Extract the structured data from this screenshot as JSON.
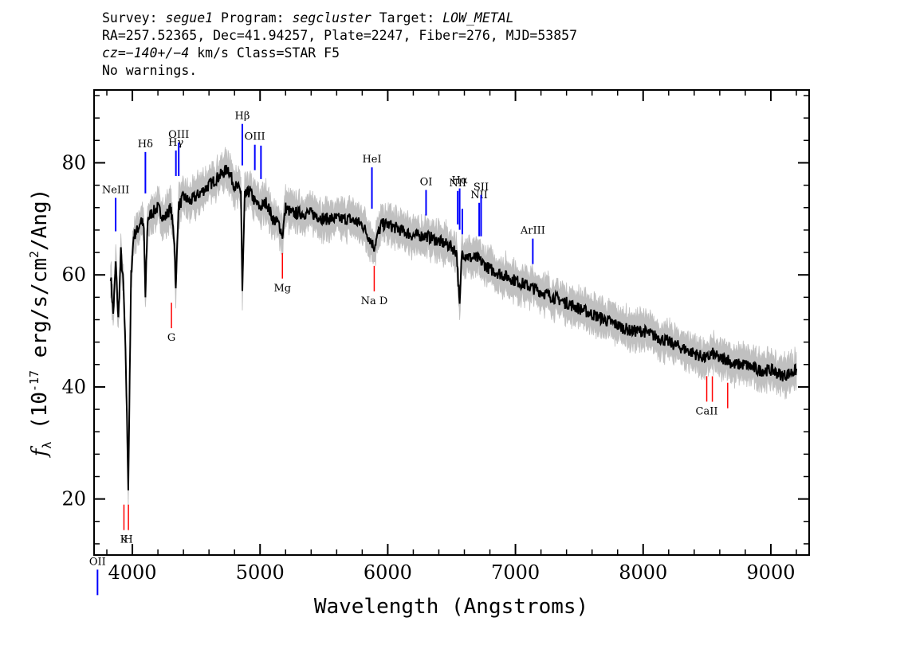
{
  "header": {
    "line1": {
      "survey_label": "Survey: ",
      "survey": "segue1",
      "program_label": " Program: ",
      "program": "segcluster",
      "target_label": " Target: ",
      "target": "LOW_METAL"
    },
    "line2": "RA=257.52365, Dec=41.94257, Plate=2247, Fiber=276, MJD=53857",
    "line3": {
      "cz": "cz=−140+/−4",
      "rest": " km/s Class=STAR F5"
    },
    "line4": "No warnings."
  },
  "chart_data": {
    "type": "line",
    "xlabel": "Wavelength (Angstroms)",
    "ylabel": "f_λ (10^-17 erg/s/cm^2/Ang)",
    "xlim": [
      3700,
      9300
    ],
    "ylim": [
      10,
      93
    ],
    "x_ticks": [
      4000,
      5000,
      6000,
      7000,
      8000,
      9000
    ],
    "y_ticks": [
      20,
      40,
      60,
      80
    ],
    "grid": false,
    "colors": {
      "spectrum": "#000000",
      "error_band": "#c0c0c0",
      "emission_lines": "#0000ff",
      "absorption_lines": "#ff0000"
    },
    "series": [
      {
        "x": [
          3830,
          3850,
          3870,
          3890,
          3910,
          3930,
          3950,
          3968,
          3990,
          4010,
          4040,
          4070,
          4090,
          4102,
          4120,
          4150,
          4200,
          4250,
          4300,
          4330,
          4340,
          4360,
          4400,
          4450,
          4500,
          4550,
          4600,
          4650,
          4700,
          4750,
          4780,
          4800,
          4850,
          4861,
          4880,
          4920,
          4960,
          5000,
          5050,
          5100,
          5150,
          5175,
          5200,
          5250,
          5300,
          5400,
          5500,
          5600,
          5700,
          5800,
          5893,
          5950,
          6000,
          6100,
          6200,
          6300,
          6400,
          6500,
          6540,
          6563,
          6580,
          6650,
          6700,
          6800,
          6900,
          7000,
          7100,
          7200,
          7300,
          7400,
          7500,
          7600,
          7700,
          7800,
          7900,
          8000,
          8100,
          8200,
          8300,
          8400,
          8498,
          8542,
          8600,
          8662,
          8700,
          8800,
          8900,
          9000,
          9100,
          9200
        ],
        "y": [
          60,
          53,
          62,
          52,
          64,
          58,
          43,
          22,
          60,
          67,
          68,
          70,
          68,
          56,
          70,
          71,
          72,
          70,
          72,
          66,
          57,
          72,
          74,
          73,
          74,
          75,
          76,
          77,
          78,
          79,
          77,
          76,
          75,
          57,
          74,
          75,
          73,
          72,
          73,
          70,
          69,
          67,
          72,
          71,
          71,
          71,
          70,
          70,
          70,
          69,
          65,
          69,
          69,
          68,
          67,
          67,
          66,
          65,
          64,
          54,
          64,
          63,
          63,
          61,
          60,
          59,
          58,
          57,
          56,
          55,
          54,
          53,
          52,
          51,
          50,
          50,
          49,
          48,
          47,
          46,
          45,
          46,
          45,
          45,
          44,
          44,
          43,
          43,
          42,
          43
        ]
      }
    ],
    "emission_lines": [
      {
        "label": "OII",
        "wavelength": 3727
      },
      {
        "label": "NeIII",
        "wavelength": 3869
      },
      {
        "label": "Hδ",
        "wavelength": 4102
      },
      {
        "label": "Hγ",
        "wavelength": 4341
      },
      {
        "label": "OIII",
        "wavelength": 4363
      },
      {
        "label": "Hβ",
        "wavelength": 4861
      },
      {
        "label": "OIII",
        "wavelength": 4959
      },
      {
        "label": "",
        "wavelength": 5007
      },
      {
        "label": "HeI",
        "wavelength": 5876
      },
      {
        "label": "OI",
        "wavelength": 6300
      },
      {
        "label": "NII",
        "wavelength": 6548
      },
      {
        "label": "Hα",
        "wavelength": 6563
      },
      {
        "label": "",
        "wavelength": 6584
      },
      {
        "label": "NII",
        "wavelength": 6716
      },
      {
        "label": "SII",
        "wavelength": 6731
      },
      {
        "label": "ArIII",
        "wavelength": 7136
      }
    ],
    "absorption_lines": [
      {
        "label": "K",
        "wavelength": 3934
      },
      {
        "label": "H",
        "wavelength": 3969
      },
      {
        "label": "G",
        "wavelength": 4306
      },
      {
        "label": "Mg",
        "wavelength": 5175
      },
      {
        "label": "Na D",
        "wavelength": 5894
      },
      {
        "label": "CaII",
        "wavelength": 8498
      },
      {
        "label": "",
        "wavelength": 8542
      },
      {
        "label": "",
        "wavelength": 8662
      }
    ]
  }
}
